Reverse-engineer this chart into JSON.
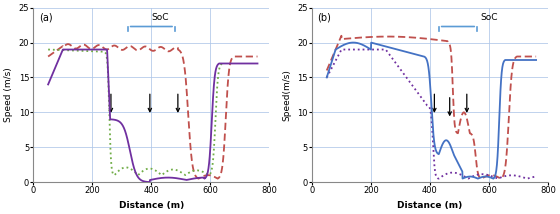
{
  "title_a": "(a)",
  "title_b": "(b)",
  "xlabel": "Distance (m)",
  "ylabel_a": "Speed (m/s)",
  "ylabel_b": "Speed(m/s)",
  "xlim": [
    0,
    800
  ],
  "ylim": [
    0,
    25
  ],
  "yticks": [
    0,
    5,
    10,
    15,
    20,
    25
  ],
  "xticks": [
    0,
    200,
    400,
    600,
    800
  ],
  "soc_label": "SoC",
  "background_color": "#ffffff",
  "grid_color": "#aec6e8"
}
